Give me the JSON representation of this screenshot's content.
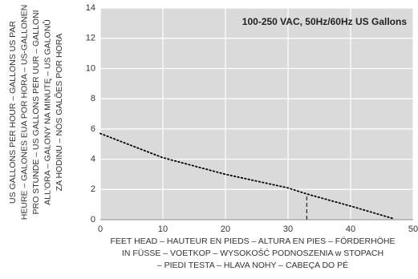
{
  "chart_data": {
    "type": "line",
    "annotation": "100-250 VAC, 50Hz/60Hz US Gallons",
    "ylabel": [
      "US GALLONS PER HOUR – GALLONS US PAR",
      "HEURE – GALONES EUA POR HORA – US-GALLONEN",
      "PRO STUNDE – US GALLONS PER UUR – GALLONI",
      "ALL'ORA – GALONY NA MINUTĘ – US GALONŮ",
      "ZA HODINU – NÓS GALÕES POR HORA"
    ],
    "xlabel": [
      "FEET HEAD – HAUTEUR EN PIEDS – ALTURA EN PIES – FÖRDERHÖHE",
      "IN FÜSSE – VOETKOP – WYSOKOŚĆ PODNOSZENIA w STOPACH",
      "– PIEDI TESTA – HLAVA NOHY – CABEÇA DO PÉ"
    ],
    "x": [
      0,
      10,
      20,
      30,
      33,
      40,
      47
    ],
    "series": [
      {
        "color": "#000000",
        "values": [
          5.7,
          4.1,
          3.0,
          2.1,
          1.7,
          0.9,
          0.05
        ]
      }
    ],
    "marker": {
      "x": 33,
      "y": 1.6
    },
    "xlim": [
      0,
      50
    ],
    "xticks": [
      0,
      10,
      20,
      30,
      40,
      50
    ],
    "ylim": [
      0,
      14
    ],
    "yticks": [
      0,
      2,
      4,
      6,
      8,
      10,
      12,
      14
    ],
    "grid": true
  }
}
